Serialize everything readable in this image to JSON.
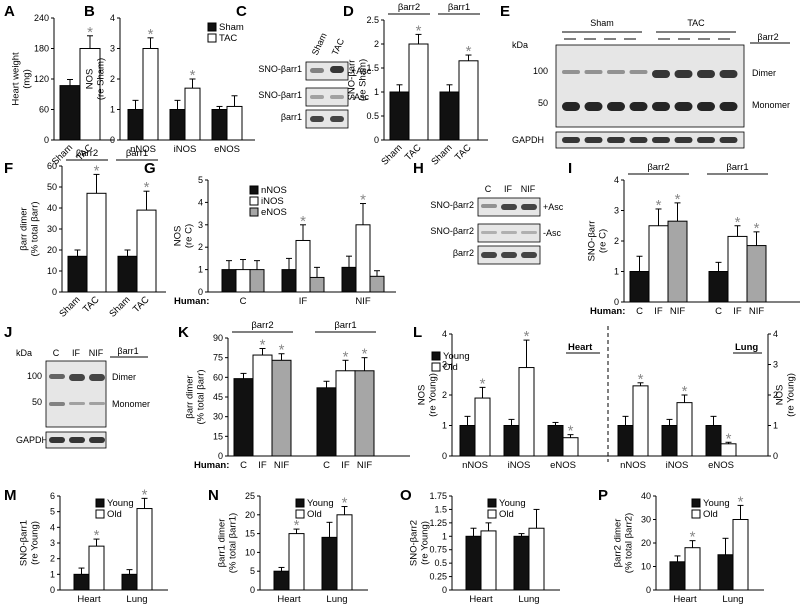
{
  "figure": {
    "panel_letters": [
      "A",
      "B",
      "C",
      "D",
      "E",
      "F",
      "G",
      "H",
      "I",
      "J",
      "K",
      "L",
      "M",
      "N",
      "O",
      "P"
    ]
  },
  "colors": {
    "sham_young": "#111111",
    "tac_old": "#ffffff",
    "enos_gray": "#a6a6a6",
    "star": "#888888"
  },
  "chart_data": [
    {
      "panel": "A",
      "type": "bar",
      "ylabel": "Heart weight\n(mg)",
      "ylim": [
        0,
        240
      ],
      "yticks": [
        0,
        60,
        120,
        180,
        240
      ],
      "categories": [
        "Sham",
        "TAC"
      ],
      "values": [
        107,
        180
      ],
      "errors": [
        12,
        25
      ],
      "fills": [
        "#111111",
        "#ffffff"
      ],
      "stars": [
        false,
        true
      ]
    },
    {
      "panel": "B",
      "type": "bar",
      "ylabel": "NOS\n(re Sham)",
      "ylim": [
        0,
        4
      ],
      "yticks": [
        0,
        1,
        2,
        3,
        4
      ],
      "categories": [
        "nNOS",
        "iNOS",
        "eNOS"
      ],
      "legend": [
        "Sham",
        "TAC"
      ],
      "series": [
        {
          "name": "Sham",
          "values": [
            1.0,
            1.0,
            1.0
          ],
          "errors": [
            0.3,
            0.3,
            0.1
          ]
        },
        {
          "name": "TAC",
          "values": [
            3.0,
            1.7,
            1.1
          ],
          "errors": [
            0.35,
            0.3,
            0.35
          ]
        }
      ],
      "stars": [
        [
          false,
          true
        ],
        [
          false,
          true
        ],
        [
          false,
          false
        ]
      ]
    },
    {
      "panel": "D",
      "type": "bar",
      "ylabel": "SNO-βarr\n(re Sham)",
      "ylim": [
        0,
        2.5
      ],
      "yticks": [
        0,
        0.5,
        1,
        1.5,
        2,
        2.5
      ],
      "groups": [
        "βarr2",
        "βarr1"
      ],
      "categories": [
        "Sham",
        "TAC",
        "Sham",
        "TAC"
      ],
      "values": [
        1.0,
        2.0,
        1.0,
        1.65
      ],
      "errors": [
        0.15,
        0.2,
        0.15,
        0.12
      ],
      "fills": [
        "#111111",
        "#ffffff",
        "#111111",
        "#ffffff"
      ],
      "stars": [
        false,
        true,
        false,
        true
      ]
    },
    {
      "panel": "F",
      "type": "bar",
      "ylabel": "βarr dimer\n(% total βarr)",
      "ylim": [
        0,
        60
      ],
      "yticks": [
        0,
        10,
        20,
        30,
        40,
        50,
        60
      ],
      "groups": [
        "βarr2",
        "βarr1"
      ],
      "categories": [
        "Sham",
        "TAC",
        "Sham",
        "TAC"
      ],
      "values": [
        17,
        47,
        17,
        39
      ],
      "errors": [
        3,
        9,
        3,
        9
      ],
      "fills": [
        "#111111",
        "#ffffff",
        "#111111",
        "#ffffff"
      ],
      "stars": [
        false,
        true,
        false,
        true
      ]
    },
    {
      "panel": "G",
      "type": "bar",
      "ylabel": "NOS\n(re C)",
      "ylim": [
        0,
        5
      ],
      "yticks": [
        0,
        1,
        2,
        3,
        4,
        5
      ],
      "xprefix": "Human:",
      "categories": [
        "C",
        "IF",
        "NIF"
      ],
      "legend": [
        "nNOS",
        "iNOS",
        "eNOS"
      ],
      "series": [
        {
          "name": "nNOS",
          "values": [
            1.0,
            1.0,
            1.1
          ],
          "errors": [
            0.4,
            0.5,
            0.5
          ]
        },
        {
          "name": "iNOS",
          "values": [
            1.0,
            2.3,
            3.0
          ],
          "errors": [
            0.45,
            0.7,
            0.95
          ]
        },
        {
          "name": "eNOS",
          "values": [
            1.0,
            0.65,
            0.7
          ],
          "errors": [
            0.4,
            0.45,
            0.25
          ]
        }
      ],
      "stars": [
        [
          false,
          false,
          false
        ],
        [
          false,
          true,
          false
        ],
        [
          false,
          true,
          false
        ]
      ]
    },
    {
      "panel": "I",
      "type": "bar",
      "ylabel": "SNO-βarr\n(re C)",
      "ylim": [
        0,
        4
      ],
      "yticks": [
        0,
        1,
        2,
        3,
        4
      ],
      "xprefix": "Human:",
      "groups": [
        "βarr2",
        "βarr1"
      ],
      "categories": [
        "C",
        "IF",
        "NIF",
        "C",
        "IF",
        "NIF"
      ],
      "values": [
        1.0,
        2.5,
        2.65,
        1.0,
        2.15,
        1.85
      ],
      "errors": [
        0.5,
        0.55,
        0.6,
        0.3,
        0.35,
        0.45
      ],
      "fills": [
        "#111111",
        "#ffffff",
        "#a6a6a6",
        "#111111",
        "#ffffff",
        "#a6a6a6"
      ],
      "stars": [
        false,
        true,
        true,
        false,
        true,
        true
      ]
    },
    {
      "panel": "K",
      "type": "bar",
      "ylabel": "βarr dimer\n(% total βarr)",
      "ylim": [
        0,
        90
      ],
      "yticks": [
        0,
        15,
        30,
        45,
        60,
        75,
        90
      ],
      "xprefix": "Human:",
      "groups": [
        "βarr2",
        "βarr1"
      ],
      "categories": [
        "C",
        "IF",
        "NIF",
        "C",
        "IF",
        "NIF"
      ],
      "values": [
        59,
        77,
        73,
        52,
        65,
        65
      ],
      "errors": [
        4,
        5,
        5,
        5,
        8,
        10
      ],
      "fills": [
        "#111111",
        "#ffffff",
        "#a6a6a6",
        "#111111",
        "#ffffff",
        "#a6a6a6"
      ],
      "stars": [
        false,
        true,
        true,
        false,
        true,
        true
      ]
    },
    {
      "panel": "L",
      "type": "bar",
      "ylabel": "NOS\n(re Young)",
      "ylabel_right": "NOS\n(re Young)",
      "ylim": [
        0,
        4
      ],
      "yticks": [
        0,
        1,
        2,
        3,
        4
      ],
      "groups": [
        "Heart",
        "Lung"
      ],
      "categories": [
        "nNOS",
        "iNOS",
        "eNOS",
        "nNOS",
        "iNOS",
        "eNOS"
      ],
      "legend": [
        "Young",
        "Old"
      ],
      "series": [
        {
          "name": "Young",
          "values": [
            1.0,
            1.0,
            1.0,
            1.0,
            1.0,
            1.0
          ],
          "errors": [
            0.3,
            0.2,
            0.1,
            0.3,
            0.2,
            0.3
          ]
        },
        {
          "name": "Old",
          "values": [
            1.9,
            2.9,
            0.6,
            2.3,
            1.75,
            0.4
          ]
        }
      ],
      "old_errors": [
        0.35,
        0.9,
        0.1,
        0.1,
        0.25,
        0.05
      ],
      "stars": [
        [
          false,
          true
        ],
        [
          false,
          true
        ],
        [
          false,
          true
        ],
        [
          false,
          true
        ],
        [
          false,
          true
        ],
        [
          false,
          true
        ]
      ]
    },
    {
      "panel": "M",
      "type": "bar",
      "ylabel": "SNO-βarr1\n(re Young)",
      "ylim": [
        0,
        6
      ],
      "yticks": [
        0,
        1,
        2,
        3,
        4,
        5,
        6
      ],
      "categories": [
        "Heart",
        "Lung"
      ],
      "legend": [
        "Young",
        "Old"
      ],
      "series": [
        {
          "name": "Young",
          "values": [
            1.0,
            1.0
          ],
          "errors": [
            0.4,
            0.3
          ]
        },
        {
          "name": "Old",
          "values": [
            2.8,
            5.2
          ],
          "errors": [
            0.45,
            0.65
          ]
        }
      ],
      "stars": [
        [
          false,
          true
        ],
        [
          false,
          true
        ]
      ]
    },
    {
      "panel": "N",
      "type": "bar",
      "ylabel": "βarr1 dimer\n(% total βarr1)",
      "ylim": [
        0,
        25
      ],
      "yticks": [
        0,
        5,
        10,
        15,
        20,
        25
      ],
      "categories": [
        "Heart",
        "Lung"
      ],
      "legend": [
        "Young",
        "Old"
      ],
      "series": [
        {
          "name": "Young",
          "values": [
            5,
            14
          ],
          "errors": [
            1,
            4
          ]
        },
        {
          "name": "Old",
          "values": [
            15,
            20
          ],
          "errors": [
            1.2,
            2.2
          ]
        }
      ],
      "stars": [
        [
          false,
          true
        ],
        [
          false,
          true
        ]
      ]
    },
    {
      "panel": "O",
      "type": "bar",
      "ylabel": "SNO-βarr2\n(re Young)",
      "ylim": [
        0,
        1.75
      ],
      "yticks": [
        0,
        0.25,
        0.5,
        0.75,
        1,
        1.25,
        1.5,
        1.75
      ],
      "categories": [
        "Heart",
        "Lung"
      ],
      "legend": [
        "Young",
        "Old"
      ],
      "series": [
        {
          "name": "Young",
          "values": [
            1.0,
            1.0
          ],
          "errors": [
            0.15,
            0.05
          ]
        },
        {
          "name": "Old",
          "values": [
            1.1,
            1.15
          ],
          "errors": [
            0.15,
            0.35
          ]
        }
      ],
      "stars": [
        [
          false,
          false
        ],
        [
          false,
          false
        ]
      ]
    },
    {
      "panel": "P",
      "type": "bar",
      "ylabel": "βarr2 dimer\n(% total βarr2)",
      "ylim": [
        0,
        40
      ],
      "yticks": [
        0,
        10,
        20,
        30,
        40
      ],
      "categories": [
        "Heart",
        "Lung"
      ],
      "legend": [
        "Young",
        "Old"
      ],
      "series": [
        {
          "name": "Young",
          "values": [
            12,
            15
          ],
          "errors": [
            2.5,
            7
          ]
        },
        {
          "name": "Old",
          "values": [
            18,
            30
          ],
          "errors": [
            3,
            6
          ]
        }
      ],
      "stars": [
        [
          false,
          true
        ],
        [
          false,
          true
        ]
      ]
    }
  ],
  "blots": {
    "C": {
      "lanes": [
        "Sham",
        "TAC"
      ],
      "rows": [
        "SNO-βarr1",
        "SNO-βarr1",
        "βarr1"
      ],
      "right": [
        "+Asc",
        "-Asc"
      ]
    },
    "E": {
      "kda": "kDa",
      "groups": [
        "Sham",
        "TAC"
      ],
      "markers": [
        "100",
        "50"
      ],
      "bands": [
        "Dimer",
        "Monomer"
      ],
      "loading": "GAPDH",
      "protein": "βarr2"
    },
    "H": {
      "lanes": [
        "C",
        "IF",
        "NIF"
      ],
      "rows": [
        "SNO-βarr2",
        "SNO-βarr2",
        "βarr2"
      ],
      "right": [
        "+Asc",
        "-Asc"
      ]
    },
    "J": {
      "kda": "kDa",
      "lanes": [
        "C",
        "IF",
        "NIF"
      ],
      "markers": [
        "100",
        "50"
      ],
      "bands": [
        "Dimer",
        "Monomer"
      ],
      "loading": "GAPDH",
      "protein": "βarr1"
    }
  }
}
